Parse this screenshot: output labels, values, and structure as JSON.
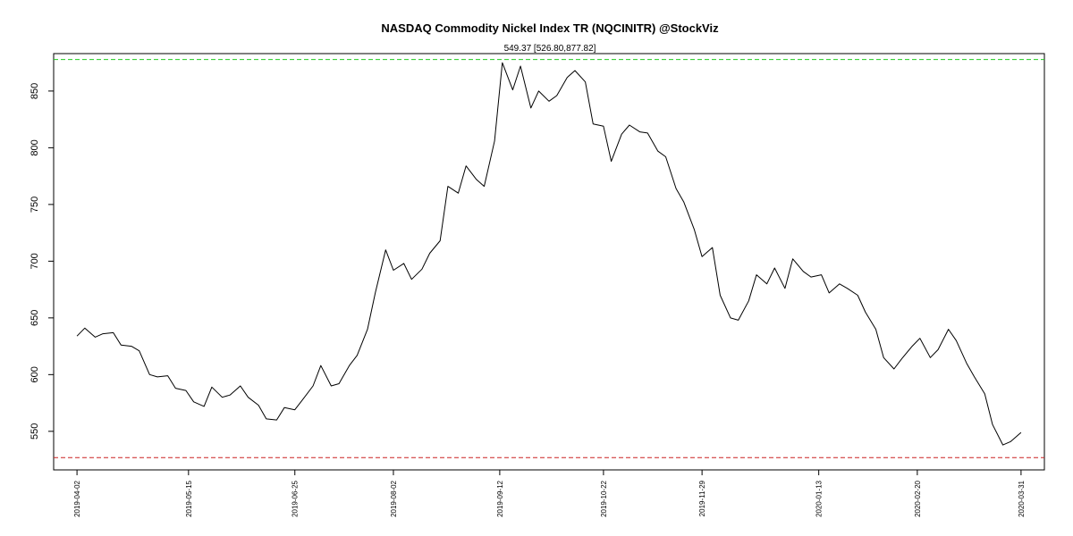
{
  "chart_data": {
    "type": "line",
    "title": "NASDAQ Commodity Nickel Index TR (NQCINITR) @StockViz",
    "subtitle": "549.37 [526.80,877.82]",
    "xlabel": "",
    "ylabel": "",
    "grid": false,
    "legend": "none",
    "ylim": [
      516,
      883
    ],
    "yticks": [
      550,
      600,
      650,
      700,
      750,
      800,
      850
    ],
    "xlim": [
      "2019-03-24",
      "2020-04-09"
    ],
    "xticks": [
      "2019-04-02",
      "2019-05-15",
      "2019-06-25",
      "2019-08-02",
      "2019-09-12",
      "2019-10-22",
      "2019-11-29",
      "2020-01-13",
      "2020-02-20",
      "2020-03-31"
    ],
    "reference_lines": [
      {
        "value": 877.82,
        "color": "#22cc22",
        "style": "dashed"
      },
      {
        "value": 526.8,
        "color": "#cc2222",
        "style": "dashed"
      }
    ],
    "series": [
      {
        "color": "#000000",
        "x": [
          "2019-04-02",
          "2019-04-05",
          "2019-04-09",
          "2019-04-12",
          "2019-04-16",
          "2019-04-19",
          "2019-04-23",
          "2019-04-26",
          "2019-04-30",
          "2019-05-03",
          "2019-05-07",
          "2019-05-10",
          "2019-05-14",
          "2019-05-17",
          "2019-05-21",
          "2019-05-24",
          "2019-05-28",
          "2019-05-31",
          "2019-06-04",
          "2019-06-07",
          "2019-06-11",
          "2019-06-14",
          "2019-06-18",
          "2019-06-21",
          "2019-06-25",
          "2019-06-28",
          "2019-07-02",
          "2019-07-05",
          "2019-07-09",
          "2019-07-12",
          "2019-07-16",
          "2019-07-19",
          "2019-07-23",
          "2019-07-26",
          "2019-07-30",
          "2019-08-02",
          "2019-08-06",
          "2019-08-09",
          "2019-08-13",
          "2019-08-16",
          "2019-08-20",
          "2019-08-23",
          "2019-08-27",
          "2019-08-30",
          "2019-09-03",
          "2019-09-06",
          "2019-09-10",
          "2019-09-13",
          "2019-09-17",
          "2019-09-20",
          "2019-09-24",
          "2019-09-27",
          "2019-10-01",
          "2019-10-04",
          "2019-10-08",
          "2019-10-11",
          "2019-10-15",
          "2019-10-18",
          "2019-10-22",
          "2019-10-25",
          "2019-10-29",
          "2019-11-01",
          "2019-11-05",
          "2019-11-08",
          "2019-11-12",
          "2019-11-15",
          "2019-11-19",
          "2019-11-22",
          "2019-11-26",
          "2019-11-29",
          "2019-12-03",
          "2019-12-06",
          "2019-12-10",
          "2019-12-13",
          "2019-12-17",
          "2019-12-20",
          "2019-12-24",
          "2019-12-27",
          "2019-12-31",
          "2020-01-03",
          "2020-01-07",
          "2020-01-10",
          "2020-01-14",
          "2020-01-17",
          "2020-01-21",
          "2020-01-24",
          "2020-01-28",
          "2020-01-31",
          "2020-02-04",
          "2020-02-07",
          "2020-02-11",
          "2020-02-14",
          "2020-02-18",
          "2020-02-21",
          "2020-02-25",
          "2020-02-28",
          "2020-03-03",
          "2020-03-06",
          "2020-03-10",
          "2020-03-13",
          "2020-03-17",
          "2020-03-20",
          "2020-03-24",
          "2020-03-27",
          "2020-03-31"
        ],
        "y": [
          634,
          641,
          633,
          636,
          637,
          626,
          625,
          621,
          600,
          598,
          599,
          588,
          586,
          576,
          572,
          589,
          580,
          582,
          590,
          580,
          573,
          561,
          560,
          571,
          569,
          578,
          590,
          608,
          590,
          592,
          608,
          617,
          640,
          672,
          710,
          692,
          698,
          684,
          693,
          707,
          718,
          766,
          760,
          784,
          772,
          766,
          806,
          875,
          851,
          872,
          835,
          850,
          841,
          846,
          862,
          868,
          858,
          821,
          819,
          788,
          812,
          820,
          814,
          813,
          797,
          792,
          764,
          752,
          728,
          704,
          712,
          670,
          650,
          648,
          665,
          688,
          680,
          694,
          676,
          702,
          691,
          686,
          688,
          672,
          680,
          676,
          670,
          655,
          640,
          615,
          605,
          614,
          625,
          632,
          615,
          622,
          640,
          630,
          610,
          598,
          583,
          556,
          538,
          541,
          549
        ]
      }
    ]
  }
}
